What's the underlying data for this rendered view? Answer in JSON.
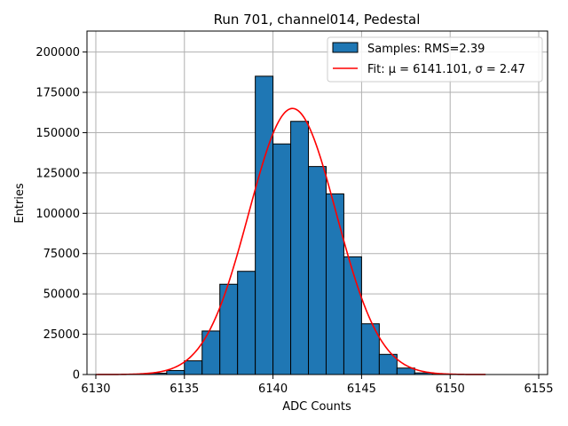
{
  "chart_data": {
    "type": "bar",
    "title": "Run 701, channel014, Pedestal",
    "xlabel": "ADC Counts",
    "ylabel": "Entries",
    "xlim": [
      6129.5,
      6155.5
    ],
    "ylim": [
      0,
      213000
    ],
    "xticks": [
      6130,
      6135,
      6140,
      6145,
      6150,
      6155
    ],
    "yticks": [
      0,
      25000,
      50000,
      75000,
      100000,
      125000,
      150000,
      175000,
      200000
    ],
    "grid": true,
    "legend_position": "top-right",
    "colors": {
      "bars": "#1f77b4",
      "bar_edge": "#000000",
      "fit": "#ff0000",
      "grid": "#b0b0b0"
    },
    "histogram": {
      "name": "Samples: RMS=2.39",
      "bin_edges": [
        6130,
        6131,
        6132,
        6133,
        6134,
        6135,
        6136,
        6137,
        6138,
        6139,
        6140,
        6141,
        6142,
        6143,
        6144,
        6145,
        6146,
        6147,
        6148,
        6149,
        6150,
        6151,
        6152,
        6153,
        6154
      ],
      "counts": [
        0,
        0,
        200,
        800,
        2500,
        8500,
        27000,
        56000,
        64000,
        185000,
        143000,
        157000,
        129000,
        112000,
        73000,
        31500,
        12500,
        4000,
        1000,
        200,
        0,
        0,
        0,
        0
      ]
    },
    "fit": {
      "name": "Fit: μ = 6141.101, σ = 2.47",
      "mu": 6141.101,
      "sigma": 2.47,
      "amplitude": 165000,
      "x_range": [
        6130,
        6152
      ]
    }
  }
}
